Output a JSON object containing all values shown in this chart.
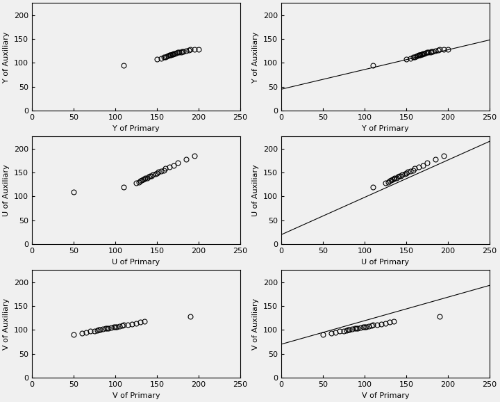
{
  "subplots": [
    {
      "xlabel": "Y of Primary",
      "ylabel": "Y of Auxiliary",
      "scatter_x": [
        110,
        150,
        155,
        158,
        160,
        162,
        163,
        165,
        166,
        167,
        168,
        169,
        170,
        172,
        173,
        175,
        177,
        179,
        180,
        182,
        185,
        188,
        190,
        195,
        200
      ],
      "scatter_y": [
        95,
        108,
        110,
        112,
        113,
        114,
        115,
        116,
        116,
        117,
        118,
        118,
        119,
        120,
        121,
        122,
        122,
        123,
        124,
        124,
        126,
        127,
        128,
        128,
        128
      ],
      "has_line": false,
      "line_x": [],
      "line_y": []
    },
    {
      "xlabel": "Y of Primary",
      "ylabel": "Y of Auxiliary",
      "scatter_x": [
        110,
        150,
        155,
        158,
        160,
        162,
        163,
        165,
        166,
        167,
        168,
        169,
        170,
        172,
        173,
        175,
        177,
        179,
        180,
        182,
        185,
        188,
        190,
        195,
        200
      ],
      "scatter_y": [
        95,
        108,
        110,
        112,
        113,
        114,
        115,
        116,
        116,
        117,
        118,
        118,
        119,
        120,
        121,
        122,
        122,
        123,
        124,
        124,
        126,
        127,
        128,
        128,
        128
      ],
      "has_line": true,
      "line_x": [
        0,
        250
      ],
      "line_y": [
        45,
        148
      ]
    },
    {
      "xlabel": "U of Primary",
      "ylabel": "U of Auxiliary",
      "scatter_x": [
        50,
        110,
        125,
        128,
        130,
        132,
        133,
        135,
        136,
        138,
        140,
        142,
        143,
        145,
        148,
        150,
        152,
        155,
        158,
        160,
        165,
        170,
        175,
        185,
        195
      ],
      "scatter_y": [
        110,
        120,
        128,
        130,
        132,
        134,
        135,
        137,
        138,
        139,
        141,
        142,
        143,
        145,
        147,
        149,
        151,
        153,
        155,
        158,
        162,
        165,
        170,
        178,
        185
      ],
      "has_line": false,
      "line_x": [],
      "line_y": []
    },
    {
      "xlabel": "U of Primary",
      "ylabel": "U of Auxiliary",
      "scatter_x": [
        110,
        125,
        128,
        130,
        132,
        133,
        135,
        136,
        138,
        140,
        142,
        143,
        145,
        148,
        150,
        152,
        155,
        158,
        160,
        165,
        170,
        175,
        185,
        195
      ],
      "scatter_y": [
        120,
        128,
        130,
        132,
        134,
        135,
        137,
        138,
        139,
        141,
        142,
        143,
        145,
        147,
        149,
        151,
        153,
        155,
        158,
        162,
        165,
        170,
        178,
        185
      ],
      "has_line": true,
      "line_x": [
        0,
        250
      ],
      "line_y": [
        20,
        215
      ]
    },
    {
      "xlabel": "V of Primary",
      "ylabel": "V of Auxiliary",
      "scatter_x": [
        50,
        60,
        65,
        70,
        75,
        78,
        80,
        82,
        85,
        88,
        90,
        92,
        95,
        98,
        100,
        102,
        105,
        108,
        110,
        115,
        120,
        125,
        130,
        135,
        190
      ],
      "scatter_y": [
        90,
        93,
        95,
        97,
        98,
        99,
        100,
        101,
        102,
        103,
        103,
        104,
        105,
        106,
        107,
        107,
        108,
        109,
        110,
        111,
        112,
        114,
        116,
        118,
        128
      ],
      "has_line": false,
      "line_x": [],
      "line_y": []
    },
    {
      "xlabel": "V of Primary",
      "ylabel": "V of Auxiliary",
      "scatter_x": [
        50,
        60,
        65,
        70,
        75,
        78,
        80,
        82,
        85,
        88,
        90,
        92,
        95,
        98,
        100,
        102,
        105,
        108,
        110,
        115,
        120,
        125,
        130,
        135,
        190
      ],
      "scatter_y": [
        90,
        93,
        95,
        97,
        98,
        99,
        100,
        101,
        102,
        103,
        103,
        104,
        105,
        106,
        107,
        107,
        108,
        109,
        110,
        111,
        112,
        114,
        116,
        118,
        128
      ],
      "has_line": true,
      "line_x": [
        0,
        250
      ],
      "line_y": [
        70,
        193
      ]
    }
  ],
  "xlim": [
    0,
    250
  ],
  "ylim": [
    0,
    225
  ],
  "xticks": [
    0,
    50,
    100,
    150,
    200,
    250
  ],
  "yticks": [
    0,
    50,
    100,
    150,
    200
  ],
  "marker_size": 5,
  "marker_facecolor": "none",
  "marker_edgecolor": "#000000",
  "marker_edgewidth": 0.8,
  "line_color": "#000000",
  "line_width": 0.8,
  "bg_color": "#f0f0f0",
  "face_color": "#f0f0f0",
  "font_size": 8,
  "tick_labelsize": 8
}
